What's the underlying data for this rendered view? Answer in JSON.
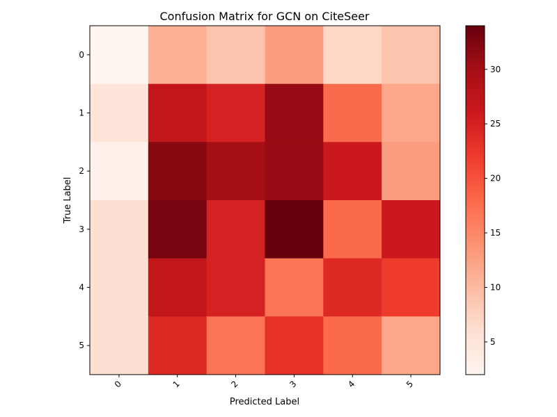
{
  "chart_data": {
    "type": "heatmap",
    "title": "Confusion Matrix for GCN on CiteSeer",
    "xlabel": "Predicted Label",
    "ylabel": "True Label",
    "x_categories": [
      "0",
      "1",
      "2",
      "3",
      "4",
      "5"
    ],
    "y_categories": [
      "0",
      "1",
      "2",
      "3",
      "4",
      "5"
    ],
    "values": [
      [
        2,
        11,
        9,
        13,
        7,
        9
      ],
      [
        5,
        27,
        25,
        31,
        18,
        12
      ],
      [
        3,
        32,
        30,
        31,
        26,
        13
      ],
      [
        6,
        33,
        25,
        34,
        18,
        26
      ],
      [
        6,
        27,
        25,
        17,
        24,
        22
      ],
      [
        6,
        24,
        17,
        23,
        18,
        12
      ]
    ],
    "colormap": "Reds",
    "vmin": 2,
    "vmax": 34,
    "colorbar_ticks": [
      "5",
      "10",
      "15",
      "20",
      "25",
      "30"
    ]
  }
}
